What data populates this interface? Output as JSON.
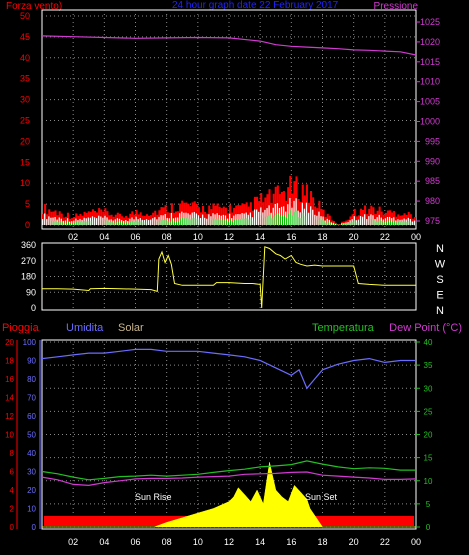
{
  "header": {
    "left_label": "Forza vento",
    "left_unit_suffix": ")",
    "title": "24 hour graph date 22 February 2017",
    "right_label": "Pressione"
  },
  "colors": {
    "background": "#000000",
    "grid": "#8a8a8a",
    "frame": "#ffffff",
    "wind_axis": "#ff0000",
    "pressure": "#d23ad2",
    "title": "#2222ff",
    "wind_gust": "#ff0000",
    "wind_avg": "#ffffff",
    "wind_low": "#00c000",
    "direction": "#ffff40",
    "humidity": "#6c6cff",
    "temperature": "#22c022",
    "dewpoint": "#d23ad2",
    "rain_bar": "#ff0000",
    "solar": "#ffff00",
    "solar_label": "#c8b48c"
  },
  "x_ticks": [
    "02",
    "04",
    "06",
    "08",
    "10",
    "12",
    "14",
    "16",
    "18",
    "20",
    "22",
    "00"
  ],
  "panel1": {
    "left_ticks": [
      "0",
      "5",
      "10",
      "15",
      "20",
      "25",
      "30",
      "35",
      "40",
      "45",
      "50"
    ],
    "right_ticks": [
      "975",
      "980",
      "985",
      "990",
      "995",
      "1000",
      "1005",
      "1010",
      "1015",
      "1020",
      "1025"
    ]
  },
  "panel2": {
    "left_ticks": [
      "0",
      "90",
      "180",
      "270",
      "360"
    ],
    "compass": [
      "N",
      "W",
      "S",
      "E",
      "N"
    ]
  },
  "panel3": {
    "labels": {
      "rain": "Pioggia",
      "humidity": "Umidita",
      "solar": "Solar",
      "temperature": "Temperatura",
      "dewpoint": "Dew Point (°C)"
    },
    "rain_ticks": [
      "0",
      "2",
      "4",
      "6",
      "8",
      "10",
      "12",
      "14",
      "16",
      "18",
      "20"
    ],
    "humidity_ticks": [
      "0",
      "10",
      "20",
      "30",
      "40",
      "50",
      "60",
      "70",
      "80",
      "90",
      "100"
    ],
    "temp_ticks": [
      "0",
      "5",
      "10",
      "15",
      "20",
      "25",
      "30",
      "35",
      "40"
    ],
    "sunrise": "Sun Rise",
    "sunset": "Sun Set"
  },
  "chart_data": [
    {
      "type": "line",
      "title": "24 hour graph date 22 February 2017",
      "x_unit": "hour",
      "series": [
        {
          "name": "Pressione",
          "axis": "right",
          "ylim": [
            975,
            1025
          ],
          "x": [
            0,
            2,
            4,
            6,
            8,
            10,
            12,
            14,
            15,
            16,
            17,
            18,
            19,
            20,
            21,
            22,
            23,
            24
          ],
          "values": [
            1021.5,
            1021.3,
            1021.1,
            1020.9,
            1021.0,
            1021.1,
            1021.0,
            1020.2,
            1019.3,
            1018.9,
            1018.7,
            1018.5,
            1018.3,
            1018.0,
            1017.9,
            1017.7,
            1017.5,
            1016.7
          ]
        },
        {
          "name": "Forza vento",
          "axis": "left",
          "ylim": [
            0,
            50
          ],
          "x": [
            0,
            1,
            2,
            3,
            4,
            5,
            6,
            7,
            8,
            9,
            10,
            11,
            12,
            13,
            14,
            15,
            16,
            17,
            18,
            19,
            20,
            21,
            22,
            23,
            24
          ],
          "values": [
            4,
            3,
            2,
            3,
            3,
            2,
            3,
            3,
            4,
            5,
            4,
            4,
            4,
            4,
            6,
            7,
            9,
            8,
            3,
            0,
            3,
            4,
            3,
            3,
            2
          ]
        }
      ]
    },
    {
      "type": "line",
      "ylim": [
        0,
        360
      ],
      "series": [
        {
          "name": "direction",
          "x": [
            0,
            1,
            2,
            3,
            3.1,
            4,
            5,
            6,
            7,
            7.4,
            7.5,
            7.7,
            7.9,
            8.1,
            8.3,
            8.5,
            9,
            10,
            11,
            11.2,
            12,
            13,
            13.5,
            14,
            14.1,
            14.3,
            14.6,
            15,
            15.3,
            15.6,
            16,
            16.3,
            16.6,
            17,
            17.5,
            18,
            19,
            20,
            20.3,
            21,
            22,
            23,
            24
          ],
          "values": [
            110,
            110,
            108,
            100,
            110,
            112,
            110,
            108,
            105,
            95,
            280,
            320,
            260,
            300,
            250,
            140,
            130,
            130,
            130,
            145,
            145,
            140,
            140,
            135,
            0,
            350,
            340,
            310,
            300,
            280,
            300,
            260,
            250,
            240,
            245,
            240,
            240,
            240,
            140,
            135,
            130,
            130,
            130
          ]
        }
      ]
    },
    {
      "type": "line",
      "series": [
        {
          "name": "Umidita",
          "axis": "humidity",
          "ylim": [
            0,
            100
          ],
          "x": [
            0,
            1,
            2,
            3,
            4,
            5,
            6,
            7,
            8,
            9,
            10,
            11,
            12,
            13,
            14,
            15,
            15.5,
            16,
            16.5,
            17,
            17.5,
            18,
            19,
            20,
            21,
            22,
            23,
            24
          ],
          "values": [
            91,
            92,
            93,
            94,
            94,
            95,
            96,
            96,
            95,
            95,
            95,
            94,
            93,
            92,
            90,
            86,
            84,
            82,
            85,
            75,
            80,
            85,
            88,
            90,
            91,
            89,
            90,
            90
          ]
        },
        {
          "name": "Temperatura",
          "axis": "temperature",
          "ylim": [
            0,
            40
          ],
          "x": [
            0,
            1,
            2,
            3,
            4,
            5,
            6,
            7,
            8,
            9,
            10,
            11,
            12,
            13,
            14,
            15,
            16,
            17,
            18,
            19,
            20,
            21,
            22,
            23,
            24
          ],
          "values": [
            12,
            11.5,
            10.8,
            10.2,
            10.5,
            10.9,
            11.0,
            11.2,
            11.0,
            11.2,
            11.4,
            11.8,
            12.2,
            12.5,
            13.0,
            13.2,
            13.5,
            14.3,
            13.6,
            13.0,
            12.6,
            12.8,
            12.7,
            12.3,
            12.3
          ]
        },
        {
          "name": "Dew Point (°C)",
          "axis": "temperature",
          "ylim": [
            0,
            40
          ],
          "x": [
            0,
            1,
            2,
            3,
            4,
            5,
            6,
            7,
            8,
            9,
            10,
            11,
            12,
            13,
            14,
            15,
            16,
            17,
            18,
            19,
            20,
            21,
            22,
            23,
            24
          ],
          "values": [
            10.8,
            10.2,
            9.2,
            9.0,
            9.6,
            10.0,
            10.4,
            10.5,
            10.5,
            10.6,
            10.8,
            10.9,
            11.0,
            11.4,
            11.5,
            11.6,
            11.8,
            11.9,
            11.2,
            11.0,
            10.8,
            10.6,
            10.3,
            10.3,
            10.4
          ]
        },
        {
          "name": "Solar",
          "axis": "temperature",
          "ylim": [
            0,
            40
          ],
          "x": [
            0,
            7.2,
            8,
            9,
            10,
            11,
            12,
            12.3,
            12.6,
            13,
            13.4,
            13.8,
            14.2,
            14.6,
            15,
            15.4,
            15.8,
            16.2,
            16.6,
            17,
            17.2,
            17.6,
            18,
            24
          ],
          "values": [
            0,
            0,
            1.0,
            2.0,
            3.0,
            4.0,
            5.5,
            6.5,
            8.5,
            7.0,
            5.5,
            8.0,
            5.0,
            14.0,
            8.0,
            6.5,
            5.5,
            9.0,
            7.5,
            6.0,
            4.0,
            2.0,
            0,
            0
          ]
        },
        {
          "name": "Pioggia",
          "axis": "rain",
          "ylim": [
            0,
            20
          ],
          "x": [
            0,
            24
          ],
          "values": [
            0,
            0
          ]
        }
      ]
    }
  ]
}
